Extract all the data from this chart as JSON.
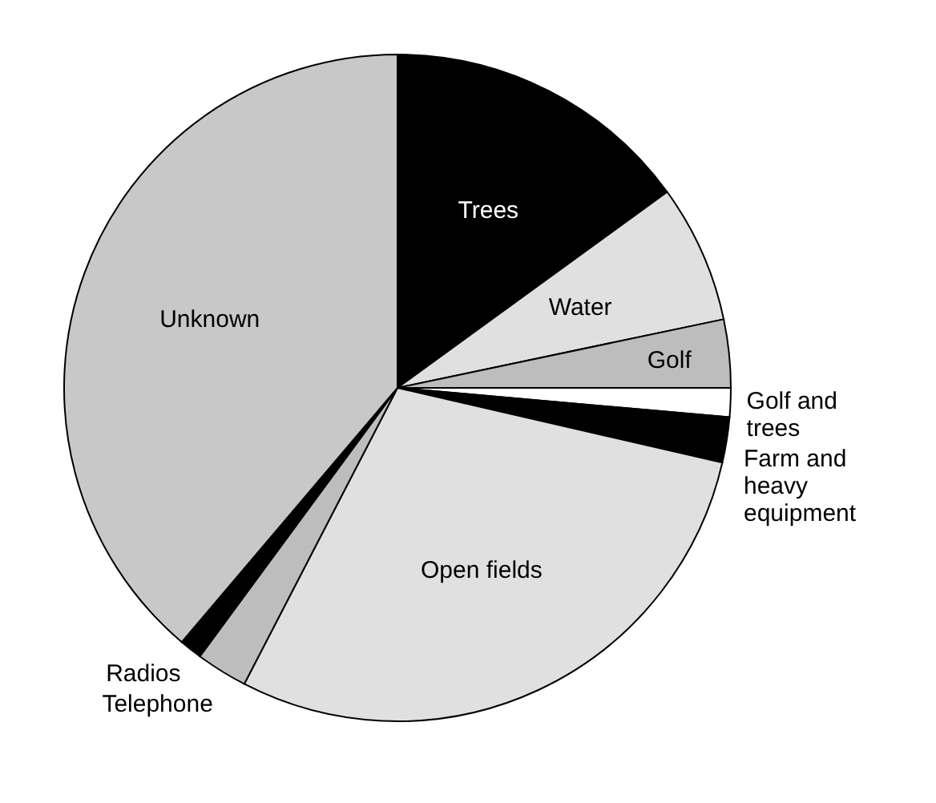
{
  "chart_data": {
    "type": "pie",
    "categories": [
      "Trees",
      "Water",
      "Golf",
      "Golf and trees",
      "Farm and heavy equipment",
      "Open fields",
      "Telephone",
      "Radios",
      "Unknown"
    ],
    "values": [
      15,
      6.7,
      3.3,
      1.4,
      2.2,
      29,
      2.5,
      1.1,
      38.8
    ],
    "colors": [
      "#000000",
      "#e0e0e0",
      "#bdbdbd",
      "#ffffff",
      "#000000",
      "#e0e0e0",
      "#bdbdbd",
      "#000000",
      "#c8c8c8"
    ]
  }
}
